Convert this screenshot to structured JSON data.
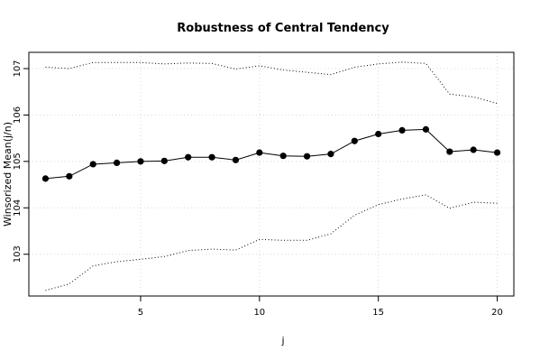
{
  "chart_data": {
    "type": "line",
    "title": "Robustness of Central Tendency",
    "xlabel": "j",
    "ylabel": "Winsorized Mean(j/n)",
    "xlim": [
      0.3,
      20.7
    ],
    "ylim": [
      102.1,
      107.35
    ],
    "xticks": [
      5,
      10,
      15,
      20
    ],
    "yticks": [
      103,
      104,
      105,
      106,
      107
    ],
    "grid": true,
    "x": [
      1,
      2,
      3,
      4,
      5,
      6,
      7,
      8,
      9,
      10,
      11,
      12,
      13,
      14,
      15,
      16,
      17,
      18,
      19,
      20
    ],
    "series": [
      {
        "style": "points-and-line",
        "values": [
          104.63,
          104.68,
          104.94,
          104.97,
          105.0,
          105.01,
          105.09,
          105.09,
          105.03,
          105.19,
          105.12,
          105.11,
          105.16,
          105.44,
          105.59,
          105.67,
          105.69,
          105.21,
          105.25,
          105.19
        ]
      },
      {
        "style": "dotted",
        "values": [
          107.03,
          107.0,
          107.13,
          107.13,
          107.13,
          107.1,
          107.12,
          107.11,
          106.99,
          107.06,
          106.97,
          106.92,
          106.87,
          107.03,
          107.1,
          107.14,
          107.11,
          106.45,
          106.39,
          106.25
        ]
      },
      {
        "style": "dotted",
        "values": [
          102.22,
          102.36,
          102.75,
          102.84,
          102.89,
          102.95,
          103.08,
          103.11,
          103.09,
          103.32,
          103.3,
          103.3,
          103.44,
          103.84,
          104.07,
          104.19,
          104.28,
          103.99,
          104.12,
          104.1
        ]
      }
    ]
  }
}
